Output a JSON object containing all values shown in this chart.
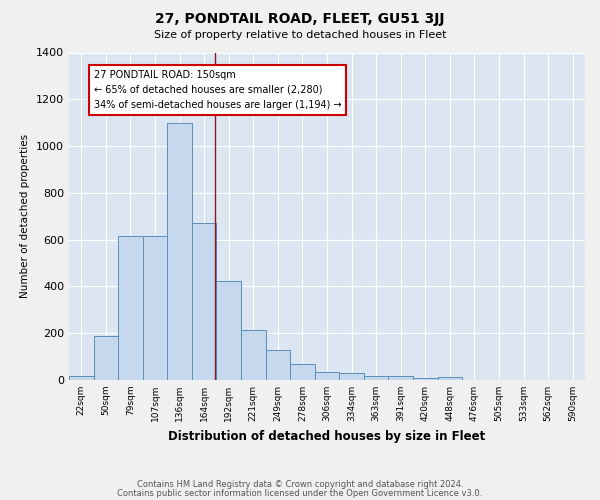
{
  "title": "27, PONDTAIL ROAD, FLEET, GU51 3JJ",
  "subtitle": "Size of property relative to detached houses in Fleet",
  "xlabel": "Distribution of detached houses by size in Fleet",
  "ylabel": "Number of detached properties",
  "footer_line1": "Contains HM Land Registry data © Crown copyright and database right 2024.",
  "footer_line2": "Contains public sector information licensed under the Open Government Licence v3.0.",
  "categories": [
    "22sqm",
    "50sqm",
    "79sqm",
    "107sqm",
    "136sqm",
    "164sqm",
    "192sqm",
    "221sqm",
    "249sqm",
    "278sqm",
    "306sqm",
    "334sqm",
    "363sqm",
    "391sqm",
    "420sqm",
    "448sqm",
    "476sqm",
    "505sqm",
    "533sqm",
    "562sqm",
    "590sqm"
  ],
  "values": [
    15,
    190,
    615,
    615,
    1100,
    670,
    425,
    215,
    130,
    70,
    33,
    30,
    18,
    15,
    10,
    13,
    0,
    0,
    0,
    0,
    0
  ],
  "bar_color": "#c5d8ed",
  "bar_edge_color": "#5b8db8",
  "bg_color": "#dce6f2",
  "fig_color": "#f0f0f0",
  "grid_color": "#ffffff",
  "vline_x": 5.45,
  "vline_color": "#8b1a1a",
  "annotation_text": "27 PONDTAIL ROAD: 150sqm\n← 65% of detached houses are smaller (2,280)\n34% of semi-detached houses are larger (1,194) →",
  "annotation_box_color": "#ffffff",
  "annotation_box_edge": "#cc0000",
  "ylim": [
    0,
    1400
  ],
  "yticks": [
    0,
    200,
    400,
    600,
    800,
    1000,
    1200,
    1400
  ]
}
